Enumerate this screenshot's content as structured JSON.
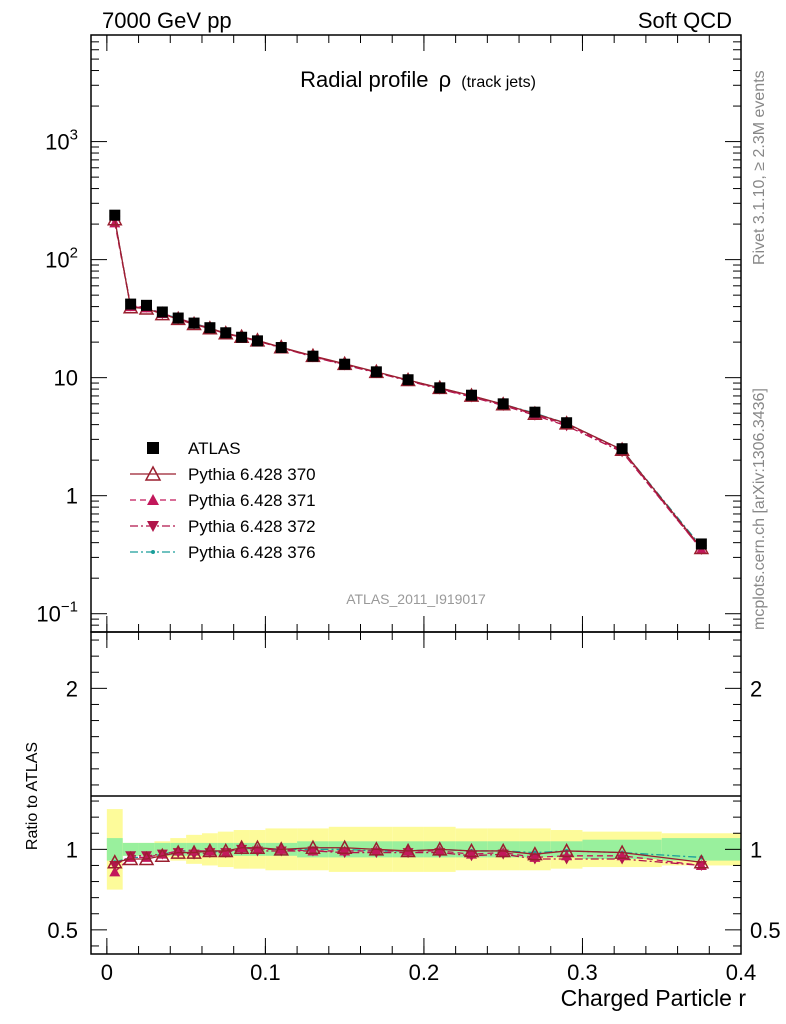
{
  "header": {
    "left": "7000 GeV pp",
    "right": "Soft QCD"
  },
  "side_texts": {
    "rivet": "Rivet 3.1.10, ≥ 2.3M events",
    "mcplots": "mcplots.cern.ch [arXiv:1306.3436]"
  },
  "chart_data": [
    {
      "type": "line",
      "title": "Radial profile",
      "title_symbol": "ρ",
      "title_suffix": "(track jets)",
      "analysis_tag": "ATLAS_2011_I919017",
      "y_scale": "log",
      "ylim": [
        0.07,
        8000
      ],
      "xlim": [
        -0.01,
        0.4
      ],
      "y_ticks": [
        {
          "value": 1000,
          "label": "10",
          "exp": "3"
        },
        {
          "value": 100,
          "label": "10",
          "exp": "2"
        },
        {
          "value": 10,
          "label": "10",
          "exp": ""
        },
        {
          "value": 1,
          "label": "1",
          "exp": ""
        },
        {
          "value": 0.1,
          "label": "10",
          "exp": "−1"
        }
      ],
      "x": [
        0.005,
        0.015,
        0.025,
        0.035,
        0.045,
        0.055,
        0.065,
        0.075,
        0.085,
        0.095,
        0.11,
        0.13,
        0.15,
        0.17,
        0.19,
        0.21,
        0.23,
        0.25,
        0.27,
        0.29,
        0.325,
        0.375
      ],
      "series": [
        {
          "name": "ATLAS",
          "color": "#000000",
          "marker": "square",
          "values": [
            238,
            42,
            41,
            36,
            32,
            29,
            26.5,
            24,
            22,
            20.5,
            18,
            15.2,
            13,
            11.2,
            9.6,
            8.2,
            7.1,
            6.0,
            5.1,
            4.15,
            2.5,
            0.39
          ]
        },
        {
          "name": "Pythia 6.428 370",
          "color": "#9a1f2f",
          "marker": "triangle-open",
          "dash": "",
          "values": [
            220,
            39.5,
            38.5,
            34.5,
            31.5,
            28.5,
            26.2,
            23.8,
            22.2,
            20.7,
            18.1,
            15.3,
            13.1,
            11.2,
            9.55,
            8.2,
            7.05,
            5.95,
            4.95,
            4.1,
            2.45,
            0.36
          ]
        },
        {
          "name": "Pythia 6.428 371",
          "color": "#c2185b",
          "marker": "triangle-up",
          "dash": "6,4",
          "values": [
            205,
            40,
            39,
            35,
            31.8,
            28.8,
            26.3,
            23.5,
            22.3,
            20.6,
            18.0,
            15.1,
            12.9,
            11.1,
            9.5,
            8.1,
            6.9,
            5.9,
            4.85,
            4.0,
            2.4,
            0.35
          ]
        },
        {
          "name": "Pythia 6.428 372",
          "color": "#b0154a",
          "marker": "triangle-down",
          "dash": "8,3,2,3",
          "values": [
            215,
            40.5,
            39.5,
            34.8,
            31.2,
            28.2,
            26.0,
            23.5,
            22.0,
            20.4,
            17.9,
            15.0,
            12.8,
            11.0,
            9.4,
            8.0,
            6.85,
            5.8,
            4.8,
            3.9,
            2.35,
            0.35
          ]
        },
        {
          "name": "Pythia 6.428 376",
          "color": "#1a9e9a",
          "marker": "dot",
          "dash": "8,3,2,3",
          "values": [
            218,
            40,
            39,
            35,
            31.8,
            28.8,
            26.3,
            23.6,
            22.2,
            20.6,
            18.0,
            15.2,
            13.0,
            11.1,
            9.5,
            8.2,
            7.0,
            5.95,
            5.0,
            4.1,
            2.45,
            0.37
          ]
        }
      ]
    },
    {
      "type": "line",
      "ylabel": "Ratio to ATLAS",
      "xlabel": "Charged Particle r",
      "xlim": [
        -0.01,
        0.4
      ],
      "ylim": [
        0.35,
        2.35
      ],
      "x_ticks": [
        {
          "value": 0,
          "label": "0"
        },
        {
          "value": 0.1,
          "label": "0.1"
        },
        {
          "value": 0.2,
          "label": "0.2"
        },
        {
          "value": 0.3,
          "label": "0.3"
        },
        {
          "value": 0.4,
          "label": "0.4"
        }
      ],
      "y_ticks": [
        {
          "value": 2,
          "label": "2"
        },
        {
          "value": 1,
          "label": "1"
        },
        {
          "value": 0.5,
          "label": "0.5"
        }
      ],
      "bins": [
        [
          0,
          0.01
        ],
        [
          0.01,
          0.02
        ],
        [
          0.02,
          0.03
        ],
        [
          0.03,
          0.04
        ],
        [
          0.04,
          0.05
        ],
        [
          0.05,
          0.06
        ],
        [
          0.06,
          0.07
        ],
        [
          0.07,
          0.08
        ],
        [
          0.08,
          0.09
        ],
        [
          0.09,
          0.1
        ],
        [
          0.1,
          0.12
        ],
        [
          0.12,
          0.14
        ],
        [
          0.14,
          0.16
        ],
        [
          0.16,
          0.18
        ],
        [
          0.18,
          0.2
        ],
        [
          0.2,
          0.22
        ],
        [
          0.22,
          0.24
        ],
        [
          0.24,
          0.26
        ],
        [
          0.26,
          0.28
        ],
        [
          0.28,
          0.3
        ],
        [
          0.3,
          0.35
        ],
        [
          0.35,
          0.4
        ]
      ],
      "band_stat": [
        0.07,
        0.04,
        0.04,
        0.04,
        0.04,
        0.04,
        0.04,
        0.04,
        0.04,
        0.04,
        0.04,
        0.05,
        0.05,
        0.05,
        0.05,
        0.05,
        0.05,
        0.05,
        0.05,
        0.05,
        0.06,
        0.07
      ],
      "band_total": [
        0.25,
        0.04,
        0.04,
        0.05,
        0.07,
        0.09,
        0.1,
        0.11,
        0.12,
        0.12,
        0.13,
        0.13,
        0.14,
        0.14,
        0.14,
        0.14,
        0.13,
        0.13,
        0.13,
        0.12,
        0.11,
        0.1
      ],
      "band_colors": {
        "total": "#fdfb9a",
        "stat": "#99f09d"
      },
      "series": [
        {
          "name": "Pythia 6.428 370",
          "values": [
            0.92,
            0.94,
            0.94,
            0.96,
            0.98,
            0.98,
            0.99,
            0.99,
            1.01,
            1.01,
            1.0,
            1.01,
            1.01,
            1.0,
            0.99,
            1.0,
            0.99,
            0.99,
            0.97,
            0.99,
            0.98,
            0.92
          ]
        },
        {
          "name": "Pythia 6.428 371",
          "values": [
            0.86,
            0.95,
            0.95,
            0.97,
            0.99,
            0.99,
            0.99,
            0.98,
            1.01,
            1.0,
            1.0,
            0.99,
            0.99,
            0.99,
            0.99,
            0.99,
            0.97,
            0.98,
            0.95,
            0.96,
            0.96,
            0.9
          ]
        },
        {
          "name": "Pythia 6.428 372",
          "values": [
            0.9,
            0.96,
            0.96,
            0.97,
            0.98,
            0.97,
            0.98,
            0.98,
            1.0,
            0.99,
            0.99,
            0.99,
            0.98,
            0.98,
            0.98,
            0.98,
            0.96,
            0.97,
            0.94,
            0.94,
            0.94,
            0.9
          ]
        },
        {
          "name": "Pythia 6.428 376",
          "values": [
            0.92,
            0.95,
            0.95,
            0.97,
            0.99,
            0.99,
            0.99,
            0.98,
            1.01,
            1.0,
            1.0,
            1.0,
            1.0,
            0.99,
            0.99,
            1.0,
            0.99,
            0.99,
            0.98,
            0.99,
            0.98,
            0.95
          ]
        }
      ]
    }
  ]
}
